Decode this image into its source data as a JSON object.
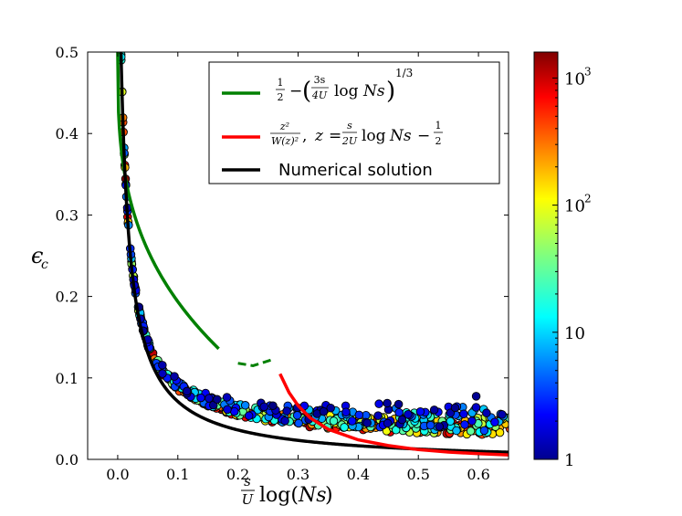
{
  "chart_data": {
    "type": "scatter",
    "title": "",
    "xlabel": "s/U log(Ns)",
    "ylabel": "ε_c",
    "xlim": [
      -0.05,
      0.65
    ],
    "ylim": [
      0.0,
      0.5
    ],
    "x_ticks": [
      "0.0",
      "0.1",
      "0.2",
      "0.3",
      "0.4",
      "0.5",
      "0.6"
    ],
    "x_tick_values": [
      0.0,
      0.1,
      0.2,
      0.3,
      0.4,
      0.5,
      0.6
    ],
    "y_ticks": [
      "0.0",
      "0.1",
      "0.2",
      "0.3",
      "0.4",
      "0.5"
    ],
    "y_tick_values": [
      0.0,
      0.1,
      0.2,
      0.3,
      0.4,
      0.5
    ],
    "legend": {
      "position": "top-right",
      "entries": [
        {
          "name": "green-approximation",
          "color": "#008000",
          "style": "solid"
        },
        {
          "name": "red-approximation",
          "color": "#ff0000",
          "style": "solid"
        },
        {
          "name": "numerical-solution",
          "label": "Numerical solution",
          "color": "#000000",
          "style": "solid"
        }
      ]
    },
    "colorbar": {
      "scale": "log",
      "range": [
        1,
        1600
      ],
      "ticks": [
        {
          "value": 1,
          "label": "1"
        },
        {
          "value": 10,
          "label": "10"
        },
        {
          "value": 100,
          "label": "10",
          "exponent": "2"
        },
        {
          "value": 1000,
          "label": "10",
          "exponent": "3"
        }
      ],
      "colormap": "jet"
    },
    "series": [
      {
        "name": "Numerical solution",
        "color": "#000000",
        "formula": "0.0093/(x+0.0095)^0.95 - 0.005",
        "x_range": [
          0.0,
          0.65
        ]
      },
      {
        "name": "1/2 - (3s/4U log Ns)^(1/3)",
        "color": "#008000",
        "formula": "0.5 - 0.66*x^(1/3)",
        "x_range": [
          0.0,
          0.168
        ]
      },
      {
        "name": "z^2/W(z)^2",
        "color": "#ff0000",
        "points": [
          [
            0.27,
            0.105
          ],
          [
            0.285,
            0.082
          ],
          [
            0.3,
            0.066
          ],
          [
            0.32,
            0.051
          ],
          [
            0.35,
            0.037
          ],
          [
            0.4,
            0.024
          ],
          [
            0.45,
            0.017
          ],
          [
            0.5,
            0.012
          ],
          [
            0.55,
            0.009
          ],
          [
            0.6,
            0.007
          ],
          [
            0.65,
            0.0055
          ]
        ]
      },
      {
        "name": "green-dashed-segment",
        "color": "#008000",
        "style": "dashed",
        "points": [
          [
            0.2,
            0.118
          ],
          [
            0.225,
            0.115
          ],
          [
            0.255,
            0.122
          ]
        ]
      },
      {
        "name": "simulation-points",
        "type": "scatter",
        "color_by": "N (log scale)",
        "n_points": 680,
        "x_range": [
          0.0,
          0.65
        ],
        "description": "cloud of circles above the numerical curve, spreading upward with x; lower colorbar values lie higher above the curve"
      }
    ]
  }
}
